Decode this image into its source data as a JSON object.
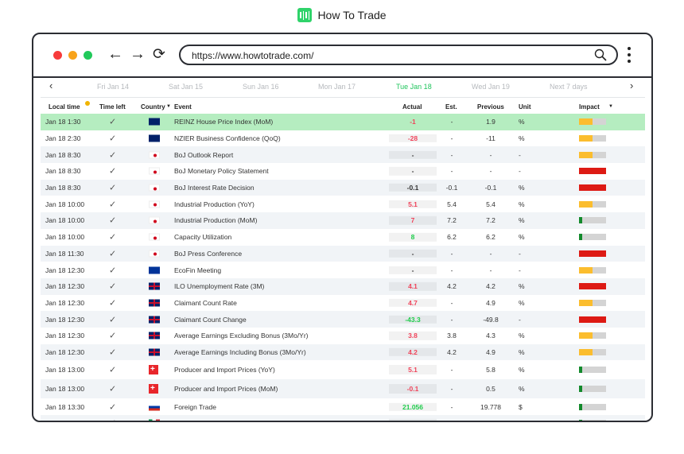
{
  "brand": {
    "name": "How To Trade",
    "color": "#2fd36a"
  },
  "browser": {
    "url": "https://www.howtotrade.com/"
  },
  "date_nav": {
    "items": [
      {
        "label": "Fri Jan 14"
      },
      {
        "label": "Sat Jan 15"
      },
      {
        "label": "Sun Jan 16"
      },
      {
        "label": "Mon Jan 17"
      },
      {
        "label": "Tue Jan 18",
        "active": true
      },
      {
        "label": "Wed Jan 19"
      },
      {
        "label": "Next 7 days"
      }
    ],
    "active_color": "#22c55e"
  },
  "columns": {
    "time": "Local time",
    "left": "Time left",
    "country": "Country",
    "event": "Event",
    "actual": "Actual",
    "est": "Est.",
    "prev": "Previous",
    "unit": "Unit",
    "impact": "Impact"
  },
  "impact_colors": {
    "high": "#dd1a14",
    "medium": "#fbbd2e",
    "low": "#138a2c"
  },
  "rows": [
    {
      "time": "Jan 18 1:30",
      "country": "nz",
      "event": "REINZ House Price Index (MoM)",
      "actual": "-1",
      "actual_trend": "neg",
      "est": "-",
      "prev": "1.9",
      "unit": "%",
      "impact": "medium",
      "highlight": true
    },
    {
      "time": "Jan 18 2:30",
      "country": "nz",
      "event": "NZIER Business Confidence (QoQ)",
      "actual": "-28",
      "actual_trend": "neg",
      "est": "-",
      "prev": "-11",
      "unit": "%",
      "impact": "medium"
    },
    {
      "time": "Jan 18 8:30",
      "country": "jp",
      "event": "BoJ Outlook Report",
      "actual": "-",
      "est": "-",
      "prev": "-",
      "unit": "-",
      "impact": "medium"
    },
    {
      "time": "Jan 18 8:30",
      "country": "jp",
      "event": "BoJ Monetary Policy Statement",
      "actual": "-",
      "est": "-",
      "prev": "-",
      "unit": "-",
      "impact": "high"
    },
    {
      "time": "Jan 18 8:30",
      "country": "jp",
      "event": "BoJ Interest Rate Decision",
      "actual": "-0.1",
      "est": "-0.1",
      "prev": "-0.1",
      "unit": "%",
      "impact": "high"
    },
    {
      "time": "Jan 18 10:00",
      "country": "jp",
      "event": "Industrial Production (YoY)",
      "actual": "5.1",
      "actual_trend": "neg",
      "est": "5.4",
      "prev": "5.4",
      "unit": "%",
      "impact": "medium"
    },
    {
      "time": "Jan 18 10:00",
      "country": "jp",
      "event": "Industrial Production (MoM)",
      "actual": "7",
      "actual_trend": "neg",
      "est": "7.2",
      "prev": "7.2",
      "unit": "%",
      "impact": "low"
    },
    {
      "time": "Jan 18 10:00",
      "country": "jp",
      "event": "Capacity Utilization",
      "actual": "8",
      "actual_trend": "pos",
      "est": "6.2",
      "prev": "6.2",
      "unit": "%",
      "impact": "low"
    },
    {
      "time": "Jan 18 11:30",
      "country": "jp",
      "event": "BoJ Press Conference",
      "actual": "-",
      "est": "-",
      "prev": "-",
      "unit": "-",
      "impact": "high"
    },
    {
      "time": "Jan 18 12:30",
      "country": "eu",
      "event": "EcoFin Meeting",
      "actual": "-",
      "est": "-",
      "prev": "-",
      "unit": "-",
      "impact": "medium"
    },
    {
      "time": "Jan 18 12:30",
      "country": "gb",
      "event": "ILO Unemployment Rate (3M)",
      "actual": "4.1",
      "actual_trend": "neg",
      "est": "4.2",
      "prev": "4.2",
      "unit": "%",
      "impact": "high"
    },
    {
      "time": "Jan 18 12:30",
      "country": "gb",
      "event": "Claimant Count Rate",
      "actual": "4.7",
      "actual_trend": "neg",
      "est": "-",
      "prev": "4.9",
      "unit": "%",
      "impact": "medium"
    },
    {
      "time": "Jan 18 12:30",
      "country": "gb",
      "event": "Claimant Count Change",
      "actual": "-43.3",
      "actual_trend": "pos",
      "est": "-",
      "prev": "-49.8",
      "unit": "-",
      "impact": "high"
    },
    {
      "time": "Jan 18 12:30",
      "country": "gb",
      "event": "Average Earnings Excluding Bonus (3Mo/Yr)",
      "actual": "3.8",
      "actual_trend": "neg",
      "est": "3.8",
      "prev": "4.3",
      "unit": "%",
      "impact": "medium"
    },
    {
      "time": "Jan 18 12:30",
      "country": "gb",
      "event": "Average Earnings Including Bonus (3Mo/Yr)",
      "actual": "4.2",
      "actual_trend": "neg",
      "est": "4.2",
      "prev": "4.9",
      "unit": "%",
      "impact": "medium"
    },
    {
      "time": "Jan 18 13:00",
      "country": "ch",
      "event": "Producer and Import Prices (YoY)",
      "actual": "5.1",
      "actual_trend": "neg",
      "est": "-",
      "prev": "5.8",
      "unit": "%",
      "impact": "low",
      "tall": true
    },
    {
      "time": "Jan 18 13:00",
      "country": "ch",
      "event": "Producer and Import Prices (MoM)",
      "actual": "-0.1",
      "actual_trend": "neg",
      "est": "-",
      "prev": "0.5",
      "unit": "%",
      "impact": "low",
      "tall": true
    },
    {
      "time": "Jan 18 13:30",
      "country": "ru",
      "event": "Foreign Trade",
      "actual": "21.056",
      "actual_trend": "pos",
      "est": "-",
      "prev": "19.778",
      "unit": "$",
      "impact": "low"
    },
    {
      "country": "it",
      "impact": "low"
    }
  ]
}
